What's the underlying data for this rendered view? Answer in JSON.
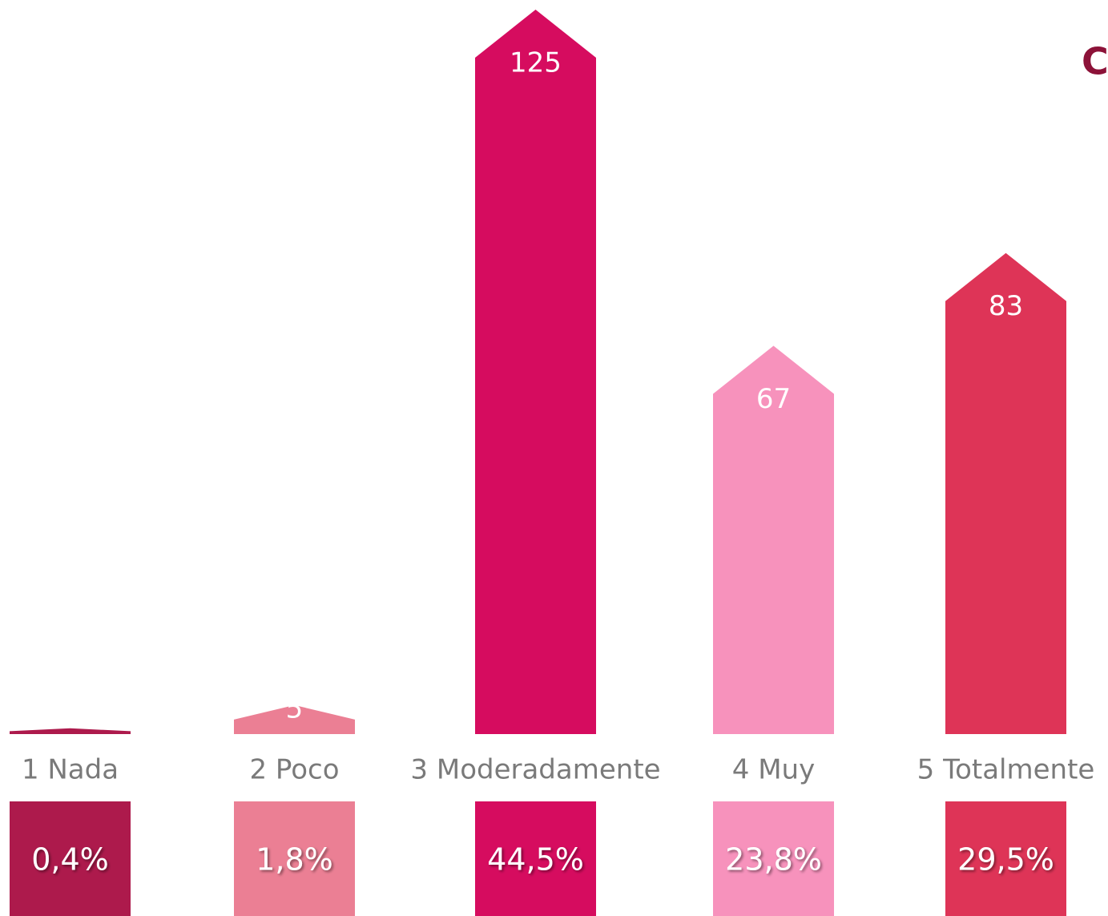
{
  "chart_data": {
    "type": "house-bar",
    "title": "C",
    "categories": [
      "1 Nada",
      "2 Poco",
      "3 Moderadamente",
      "4 Muy",
      "5 Totalmente"
    ],
    "values": [
      1,
      5,
      125,
      67,
      83
    ],
    "colors": [
      "#ad1a4c",
      "#eb7f94",
      "#d60c5f",
      "#f792bc",
      "#de3457"
    ],
    "shares": [
      0.4,
      1.8,
      44.5,
      23.8,
      29.5
    ],
    "share_labels": [
      "0,4%",
      "1,8%",
      "44,5%",
      "23,8%",
      "29,5%"
    ]
  }
}
